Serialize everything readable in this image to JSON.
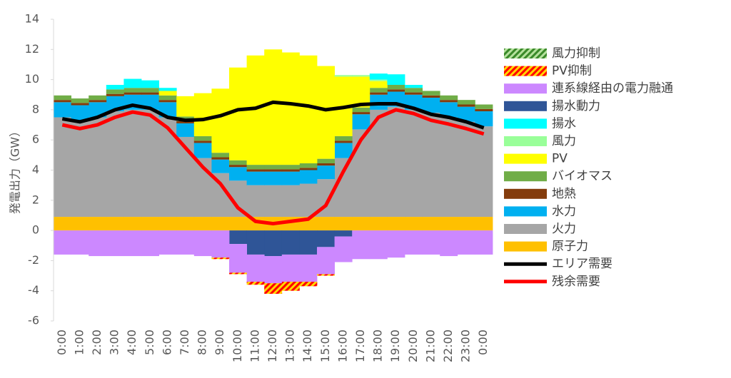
{
  "chart_data": {
    "type": "bar",
    "stacked": true,
    "y_label": "発電出力（GW）",
    "categories": [
      "0:00",
      "1:00",
      "2:00",
      "3:00",
      "4:00",
      "5:00",
      "6:00",
      "7:00",
      "8:00",
      "9:00",
      "10:00",
      "11:00",
      "12:00",
      "13:00",
      "14:00",
      "15:00",
      "16:00",
      "17:00",
      "18:00",
      "19:00",
      "20:00",
      "21:00",
      "22:00",
      "23:00",
      "0:00"
    ],
    "ylim": [
      -6,
      14
    ],
    "yticks": [
      -6,
      -4,
      -2,
      0,
      2,
      4,
      6,
      8,
      10,
      12,
      14
    ],
    "grid": false,
    "legend": "right",
    "series": [
      {
        "name": "風力抑制",
        "color": "#3a8a2a",
        "hatch_color": "#b6e29e",
        "values": [
          0,
          0,
          0,
          0,
          0,
          0,
          0,
          0,
          0,
          0,
          0,
          0,
          0,
          0,
          0,
          0,
          0,
          0,
          0,
          0,
          0,
          0,
          0,
          0,
          0
        ]
      },
      {
        "name": "PV抑制",
        "color": "#ff0000",
        "hatch_color": "#ffd700",
        "values": [
          0,
          0,
          0,
          0,
          0,
          0,
          0,
          0,
          0,
          -0.1,
          -0.1,
          -0.2,
          -0.7,
          -0.6,
          -0.3,
          -0.1,
          0,
          0,
          0,
          0,
          0,
          0,
          0,
          0,
          0
        ]
      },
      {
        "name": "連系線経由の電力融通",
        "color": "#cc88ff",
        "values": [
          -1.6,
          -1.6,
          -1.7,
          -1.7,
          -1.7,
          -1.7,
          -1.6,
          -1.6,
          -1.7,
          -1.8,
          -1.9,
          -1.8,
          -1.8,
          -1.8,
          -1.8,
          -1.8,
          -1.7,
          -1.9,
          -1.9,
          -1.8,
          -1.6,
          -1.6,
          -1.7,
          -1.6,
          -1.6
        ]
      },
      {
        "name": "揚水動力",
        "color": "#2f5597",
        "values": [
          0,
          0,
          0,
          0,
          0,
          0,
          0,
          0,
          0,
          0,
          -0.9,
          -1.6,
          -1.7,
          -1.6,
          -1.6,
          -1.1,
          -0.4,
          0,
          0,
          0,
          0,
          0,
          0,
          0,
          0
        ]
      },
      {
        "name": "揚水",
        "color": "#00ffff",
        "values": [
          0,
          0,
          0,
          0.3,
          0.6,
          0.5,
          0.2,
          0,
          0,
          0,
          0,
          0,
          0,
          0,
          0,
          0,
          0,
          0,
          0.4,
          0.7,
          0.2,
          0,
          0,
          0,
          0
        ]
      },
      {
        "name": "風力",
        "color": "#99ff99",
        "values": [
          0,
          0,
          0,
          0,
          0,
          0,
          0,
          0,
          0,
          0,
          0,
          0,
          0,
          0,
          0,
          0,
          0.1,
          0.1,
          0.1,
          0,
          0,
          0,
          0,
          0,
          0
        ]
      },
      {
        "name": "PV",
        "color": "#ffff00",
        "values": [
          0,
          0,
          0,
          0,
          0,
          0,
          0.3,
          1.35,
          2.85,
          4.25,
          6.15,
          7.25,
          7.65,
          7.45,
          7.15,
          6.15,
          3.95,
          2.05,
          0.45,
          0,
          0,
          0,
          0,
          0,
          0
        ]
      },
      {
        "name": "バイオマス",
        "color": "#70ad47",
        "values": [
          0.3,
          0.3,
          0.3,
          0.3,
          0.3,
          0.3,
          0.3,
          0.3,
          0.3,
          0.3,
          0.3,
          0.3,
          0.3,
          0.3,
          0.3,
          0.3,
          0.3,
          0.3,
          0.3,
          0.3,
          0.3,
          0.3,
          0.3,
          0.3,
          0.3
        ]
      },
      {
        "name": "地熱",
        "color": "#843c0c",
        "values": [
          0.15,
          0.15,
          0.15,
          0.15,
          0.15,
          0.15,
          0.15,
          0.15,
          0.15,
          0.15,
          0.15,
          0.15,
          0.15,
          0.15,
          0.15,
          0.15,
          0.15,
          0.15,
          0.15,
          0.15,
          0.15,
          0.15,
          0.15,
          0.15,
          0.15
        ]
      },
      {
        "name": "水力",
        "color": "#00b0f0",
        "values": [
          1.0,
          1.0,
          1.0,
          1.0,
          1.0,
          1.0,
          1.0,
          0.9,
          1.0,
          0.9,
          0.9,
          0.9,
          0.9,
          0.9,
          0.9,
          0.9,
          1.0,
          1.0,
          1.0,
          1.0,
          1.0,
          1.0,
          1.0,
          1.0,
          1.0
        ]
      },
      {
        "name": "火力",
        "color": "#a6a6a6",
        "values": [
          6.6,
          6.4,
          6.6,
          7.0,
          7.1,
          7.1,
          6.6,
          5.3,
          3.9,
          2.9,
          2.4,
          2.1,
          2.1,
          2.1,
          2.2,
          2.5,
          3.9,
          5.8,
          7.1,
          7.3,
          7.1,
          6.9,
          6.6,
          6.3,
          6.0
        ]
      },
      {
        "name": "原子力",
        "color": "#ffc000",
        "values": [
          0.9,
          0.9,
          0.9,
          0.9,
          0.9,
          0.9,
          0.9,
          0.9,
          0.9,
          0.9,
          0.9,
          0.9,
          0.9,
          0.9,
          0.9,
          0.9,
          0.9,
          0.9,
          0.9,
          0.9,
          0.9,
          0.9,
          0.9,
          0.9,
          0.9
        ]
      },
      {
        "name": "エリア需要",
        "type": "line",
        "color": "#000000",
        "values": [
          7.4,
          7.2,
          7.5,
          8.0,
          8.3,
          8.1,
          7.5,
          7.3,
          7.35,
          7.6,
          8.0,
          8.1,
          8.5,
          8.4,
          8.25,
          8.0,
          8.15,
          8.35,
          8.4,
          8.4,
          8.1,
          7.7,
          7.5,
          7.2,
          6.8
        ]
      },
      {
        "name": "残余需要",
        "type": "line",
        "color": "#ff0000",
        "values": [
          7.0,
          6.75,
          7.0,
          7.5,
          7.85,
          7.65,
          6.8,
          5.5,
          4.2,
          3.1,
          1.5,
          0.6,
          0.45,
          0.6,
          0.75,
          1.65,
          3.9,
          6.0,
          7.5,
          8.0,
          7.75,
          7.3,
          7.05,
          6.75,
          6.4
        ]
      }
    ]
  }
}
